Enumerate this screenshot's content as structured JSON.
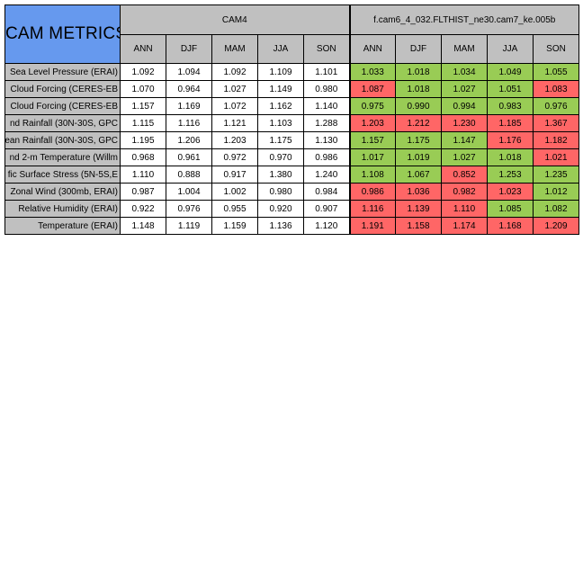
{
  "title": "CAM METRICS",
  "groups": [
    {
      "label": "CAM4"
    },
    {
      "label": "f.cam6_4_032.FLTHIST_ne30.cam7_ke.005b"
    }
  ],
  "seasons": [
    "ANN",
    "DJF",
    "MAM",
    "JJA",
    "SON"
  ],
  "colors": {
    "header_blue": "#6699ee",
    "header_gray": "#c0c0c0",
    "better": "#99cc55",
    "worse": "#ff6666"
  },
  "rows": [
    {
      "label": "Sea Level Pressure (ERAI)",
      "cam4": [
        "1.092",
        "1.094",
        "1.092",
        "1.109",
        "1.101"
      ],
      "run": [
        "1.033",
        "1.018",
        "1.034",
        "1.049",
        "1.055"
      ],
      "status": [
        "good",
        "good",
        "good",
        "good",
        "good"
      ]
    },
    {
      "label": "Cloud Forcing (CERES-EB",
      "cam4": [
        "1.070",
        "0.964",
        "1.027",
        "1.149",
        "0.980"
      ],
      "run": [
        "1.087",
        "1.018",
        "1.027",
        "1.051",
        "1.083"
      ],
      "status": [
        "bad",
        "good",
        "good",
        "good",
        "bad"
      ]
    },
    {
      "label": "Cloud Forcing (CERES-EB",
      "cam4": [
        "1.157",
        "1.169",
        "1.072",
        "1.162",
        "1.140"
      ],
      "run": [
        "0.975",
        "0.990",
        "0.994",
        "0.983",
        "0.976"
      ],
      "status": [
        "good",
        "good",
        "good",
        "good",
        "good"
      ]
    },
    {
      "label": "nd Rainfall (30N-30S, GPC",
      "cam4": [
        "1.115",
        "1.116",
        "1.121",
        "1.103",
        "1.288"
      ],
      "run": [
        "1.203",
        "1.212",
        "1.230",
        "1.185",
        "1.367"
      ],
      "status": [
        "bad",
        "bad",
        "bad",
        "bad",
        "bad"
      ]
    },
    {
      "label": "ean Rainfall (30N-30S, GPC",
      "cam4": [
        "1.195",
        "1.206",
        "1.203",
        "1.175",
        "1.130"
      ],
      "run": [
        "1.157",
        "1.175",
        "1.147",
        "1.176",
        "1.182"
      ],
      "status": [
        "good",
        "good",
        "good",
        "bad",
        "bad"
      ]
    },
    {
      "label": "nd 2-m Temperature (Willm",
      "cam4": [
        "0.968",
        "0.961",
        "0.972",
        "0.970",
        "0.986"
      ],
      "run": [
        "1.017",
        "1.019",
        "1.027",
        "1.018",
        "1.021"
      ],
      "status": [
        "good",
        "good",
        "good",
        "good",
        "bad"
      ]
    },
    {
      "label": "fic Surface Stress (5N-5S,E",
      "cam4": [
        "1.110",
        "0.888",
        "0.917",
        "1.380",
        "1.240"
      ],
      "run": [
        "1.108",
        "1.067",
        "0.852",
        "1.253",
        "1.235"
      ],
      "status": [
        "good",
        "good",
        "bad",
        "good",
        "good"
      ]
    },
    {
      "label": "Zonal Wind (300mb, ERAI)",
      "cam4": [
        "0.987",
        "1.004",
        "1.002",
        "0.980",
        "0.984"
      ],
      "run": [
        "0.986",
        "1.036",
        "0.982",
        "1.023",
        "1.012"
      ],
      "status": [
        "bad",
        "bad",
        "bad",
        "bad",
        "good"
      ]
    },
    {
      "label": "Relative Humidity (ERAI)",
      "cam4": [
        "0.922",
        "0.976",
        "0.955",
        "0.920",
        "0.907"
      ],
      "run": [
        "1.116",
        "1.139",
        "1.110",
        "1.085",
        "1.082"
      ],
      "status": [
        "bad",
        "bad",
        "bad",
        "good",
        "good"
      ]
    },
    {
      "label": "Temperature (ERAI)",
      "cam4": [
        "1.148",
        "1.119",
        "1.159",
        "1.136",
        "1.120"
      ],
      "run": [
        "1.191",
        "1.158",
        "1.174",
        "1.168",
        "1.209"
      ],
      "status": [
        "bad",
        "bad",
        "bad",
        "bad",
        "bad"
      ]
    }
  ]
}
